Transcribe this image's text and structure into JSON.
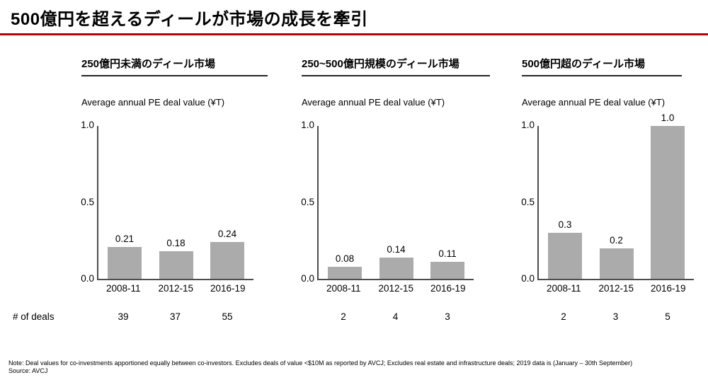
{
  "page": {
    "title": "500億円を超えるディールが市場の成長を牽引",
    "deals_row_label": "# of deals",
    "note": "Note: Deal values for co-investments apportioned equally between co-investors. Excludes deals of value <$10M as reported by AVCJ; Excludes real estate and infrastructure deals; 2019 data is (January – 30th September)",
    "source": "Source: AVCJ",
    "colors": {
      "accent_red": "#c00000",
      "bar_gray": "#ababab",
      "axis_gray": "#4d4d4d"
    }
  },
  "chart_data": [
    {
      "type": "bar",
      "title": "250億円未満のディール市場",
      "ylabel": "Average annual PE deal value (¥T)",
      "categories": [
        "2008-11",
        "2012-15",
        "2016-19"
      ],
      "values": [
        0.21,
        0.18,
        0.24
      ],
      "value_labels": [
        "0.21",
        "0.18",
        "0.24"
      ],
      "deal_counts": [
        "39",
        "37",
        "55"
      ],
      "ylim": [
        0.0,
        1.0
      ],
      "yticks": [
        "1.0",
        "0.5",
        "0.0"
      ],
      "grid": false,
      "legend": false
    },
    {
      "type": "bar",
      "title": "250~500億円規模のディール市場",
      "ylabel": "Average annual PE deal value (¥T)",
      "categories": [
        "2008-11",
        "2012-15",
        "2016-19"
      ],
      "values": [
        0.08,
        0.14,
        0.11
      ],
      "value_labels": [
        "0.08",
        "0.14",
        "0.11"
      ],
      "deal_counts": [
        "2",
        "4",
        "3"
      ],
      "ylim": [
        0.0,
        1.0
      ],
      "yticks": [
        "1.0",
        "0.5",
        "0.0"
      ],
      "grid": false,
      "legend": false
    },
    {
      "type": "bar",
      "title": "500億円超のディール市場",
      "ylabel": "Average annual PE deal value (¥T)",
      "categories": [
        "2008-11",
        "2012-15",
        "2016-19"
      ],
      "values": [
        0.3,
        0.2,
        1.0
      ],
      "value_labels": [
        "0.3",
        "0.2",
        "1.0"
      ],
      "deal_counts": [
        "2",
        "3",
        "5"
      ],
      "ylim": [
        0.0,
        1.0
      ],
      "yticks": [
        "1.0",
        "0.5",
        "0.0"
      ],
      "grid": false,
      "legend": false
    }
  ]
}
